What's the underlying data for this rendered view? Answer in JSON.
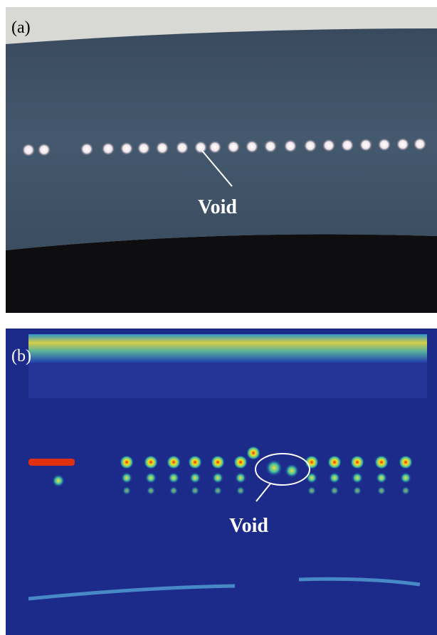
{
  "panels": [
    {
      "label": "(a)",
      "annotation": "Void"
    },
    {
      "label": "(b)",
      "annotation": "Void"
    }
  ]
}
